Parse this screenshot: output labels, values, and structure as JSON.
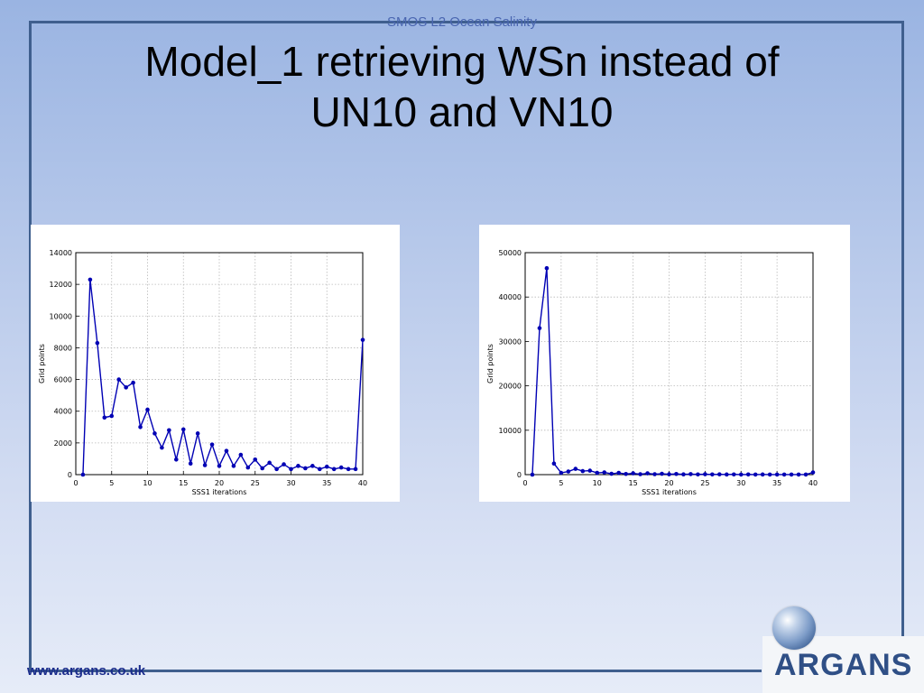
{
  "header": {
    "label": "SMOS L2 Ocean Salinity"
  },
  "title": {
    "line1": "Model_1 retrieving WSn instead of",
    "line2": "UN10 and VN10"
  },
  "footer": {
    "url": "www.argans.co.uk"
  },
  "logo": {
    "text": "ARGANS",
    "icon": "globe-icon"
  },
  "colors": {
    "frame": "#3f5f8e",
    "series": "#0000b4",
    "footer_text": "#1a2c8c"
  },
  "chart_data": [
    {
      "type": "line",
      "title": "",
      "xlabel": "SSS1 iterations",
      "ylabel": "Grid points",
      "xlim": [
        0,
        40
      ],
      "ylim": [
        0,
        14000
      ],
      "xticks": [
        0,
        5,
        10,
        15,
        20,
        25,
        30,
        35,
        40
      ],
      "yticks": [
        0,
        2000,
        4000,
        6000,
        8000,
        10000,
        12000,
        14000
      ],
      "grid": true,
      "x": [
        1,
        2,
        3,
        4,
        5,
        6,
        7,
        8,
        9,
        10,
        11,
        12,
        13,
        14,
        15,
        16,
        17,
        18,
        19,
        20,
        21,
        22,
        23,
        24,
        25,
        26,
        27,
        28,
        29,
        30,
        31,
        32,
        33,
        34,
        35,
        36,
        37,
        38,
        39,
        40
      ],
      "y": [
        0,
        12300,
        8300,
        3600,
        3700,
        6000,
        5500,
        5800,
        3000,
        4100,
        2600,
        1700,
        2800,
        950,
        2850,
        700,
        2600,
        600,
        1900,
        550,
        1500,
        550,
        1250,
        450,
        950,
        400,
        750,
        350,
        650,
        350,
        550,
        400,
        550,
        350,
        500,
        350,
        450,
        350,
        350,
        8500
      ]
    },
    {
      "type": "line",
      "title": "",
      "xlabel": "SSS1 iterations",
      "ylabel": "Grid points",
      "xlim": [
        0,
        40
      ],
      "ylim": [
        0,
        50000
      ],
      "xticks": [
        0,
        5,
        10,
        15,
        20,
        25,
        30,
        35,
        40
      ],
      "yticks": [
        0,
        10000,
        20000,
        30000,
        40000,
        50000
      ],
      "grid": true,
      "x": [
        1,
        2,
        3,
        4,
        5,
        6,
        7,
        8,
        9,
        10,
        11,
        12,
        13,
        14,
        15,
        16,
        17,
        18,
        19,
        20,
        21,
        22,
        23,
        24,
        25,
        26,
        27,
        28,
        29,
        30,
        31,
        32,
        33,
        34,
        35,
        36,
        37,
        38,
        39,
        40
      ],
      "y": [
        0,
        33000,
        46500,
        2500,
        400,
        700,
        1300,
        800,
        900,
        400,
        500,
        200,
        400,
        150,
        300,
        100,
        300,
        100,
        200,
        80,
        150,
        60,
        120,
        50,
        90,
        40,
        70,
        30,
        50,
        20,
        40,
        20,
        30,
        20,
        20,
        20,
        20,
        20,
        20,
        500
      ]
    }
  ]
}
